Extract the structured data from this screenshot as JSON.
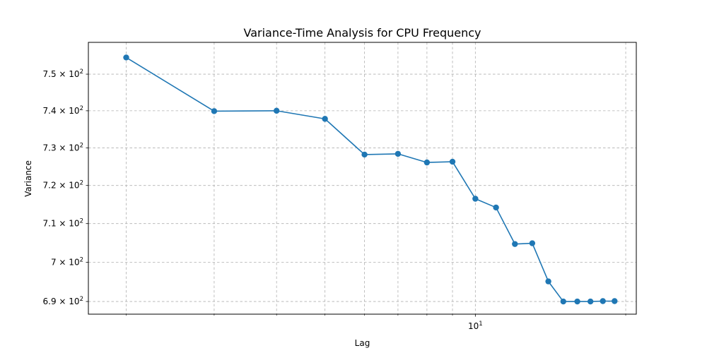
{
  "chart_data": {
    "type": "line",
    "title": "Variance-Time Analysis for CPU Frequency",
    "xlabel": "Lag",
    "ylabel": "Variance",
    "x_scale": "log",
    "y_scale": "log",
    "xlim": [
      1.68,
      21.0
    ],
    "ylim": [
      686.8,
      758.8
    ],
    "x_ticks": [
      {
        "value": 10,
        "label": "10",
        "superscript": "1"
      }
    ],
    "y_ticks": [
      {
        "value": 690,
        "label": "6.9 × 10",
        "superscript": "2"
      },
      {
        "value": 700,
        "label": "7 × 10",
        "superscript": "2"
      },
      {
        "value": 710,
        "label": "7.1 × 10",
        "superscript": "2"
      },
      {
        "value": 720,
        "label": "7.2 × 10",
        "superscript": "2"
      },
      {
        "value": 730,
        "label": "7.3 × 10",
        "superscript": "2"
      },
      {
        "value": 740,
        "label": "7.4 × 10",
        "superscript": "2"
      },
      {
        "value": 750,
        "label": "7.5 × 10",
        "superscript": "2"
      }
    ],
    "minor_x_grid": [
      2,
      3,
      4,
      5,
      6,
      7,
      8,
      9,
      20
    ],
    "grid": true,
    "legend": "none",
    "series": [
      {
        "color": "#1f77b4",
        "marker": "circle",
        "x": [
          2,
          3,
          4,
          5,
          6,
          7,
          8,
          9,
          10,
          11,
          12,
          13,
          14,
          15,
          16,
          17,
          18,
          19
        ],
        "y": [
          754.6,
          739.9,
          740.0,
          737.8,
          728.2,
          728.4,
          726.1,
          726.3,
          716.5,
          714.2,
          704.7,
          704.9,
          695.1,
          690.0,
          690.0,
          690.0,
          690.1,
          690.1
        ]
      }
    ]
  }
}
